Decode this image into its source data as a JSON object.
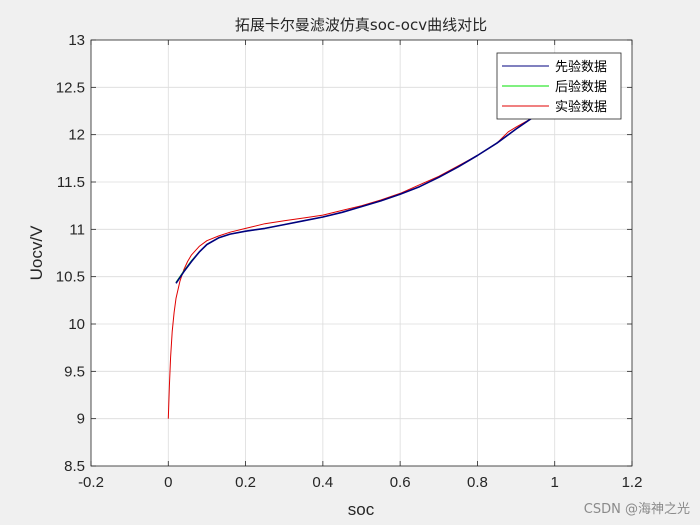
{
  "chart_data": {
    "type": "line",
    "title": "拓展卡尔曼滤波仿真soc-ocv曲线对比",
    "xlabel": "soc",
    "ylabel": "Uocv/V",
    "xlim": [
      -0.2,
      1.2
    ],
    "ylim": [
      8.5,
      13
    ],
    "xticks": [
      -0.2,
      0,
      0.2,
      0.4,
      0.6,
      0.8,
      1,
      1.2
    ],
    "yticks": [
      8.5,
      9,
      9.5,
      10,
      10.5,
      11,
      11.5,
      12,
      12.5,
      13
    ],
    "xtick_labels": [
      "-0.2",
      "0",
      "0.2",
      "0.4",
      "0.6",
      "0.8",
      "1",
      "1.2"
    ],
    "ytick_labels": [
      "8.5",
      "9",
      "9.5",
      "10",
      "10.5",
      "11",
      "11.5",
      "12",
      "12.5",
      "13"
    ],
    "grid": true,
    "legend_position": "top-right",
    "series": [
      {
        "name": "先验数据",
        "color": "#00007f",
        "x": [
          0.02,
          0.04,
          0.06,
          0.08,
          0.1,
          0.13,
          0.16,
          0.2,
          0.25,
          0.3,
          0.35,
          0.4,
          0.45,
          0.5,
          0.55,
          0.6,
          0.65,
          0.7,
          0.75,
          0.8,
          0.85,
          0.9,
          0.95
        ],
        "y": [
          10.43,
          10.55,
          10.66,
          10.76,
          10.84,
          10.91,
          10.95,
          10.98,
          11.01,
          11.05,
          11.09,
          11.13,
          11.18,
          11.24,
          11.3,
          11.37,
          11.45,
          11.55,
          11.66,
          11.78,
          11.91,
          12.06,
          12.2
        ]
      },
      {
        "name": "后验数据",
        "color": "#00e000",
        "x": [
          0.02,
          0.04,
          0.06,
          0.08,
          0.1,
          0.13,
          0.16,
          0.2,
          0.25,
          0.3,
          0.35,
          0.4,
          0.45,
          0.5,
          0.55,
          0.6,
          0.65,
          0.7,
          0.75,
          0.8,
          0.85,
          0.9,
          0.95
        ],
        "y": [
          10.44,
          10.56,
          10.67,
          10.76,
          10.84,
          10.91,
          10.95,
          10.98,
          11.01,
          11.05,
          11.09,
          11.13,
          11.18,
          11.24,
          11.3,
          11.37,
          11.45,
          11.55,
          11.66,
          11.78,
          11.91,
          12.06,
          12.2
        ]
      },
      {
        "name": "实验数据",
        "color": "#e00000",
        "x": [
          0.0,
          0.003,
          0.006,
          0.01,
          0.015,
          0.02,
          0.03,
          0.04,
          0.05,
          0.06,
          0.08,
          0.1,
          0.13,
          0.16,
          0.2,
          0.25,
          0.3,
          0.35,
          0.4,
          0.45,
          0.5,
          0.55,
          0.6,
          0.65,
          0.7,
          0.75,
          0.8,
          0.85,
          0.88,
          0.9,
          0.93,
          0.95
        ],
        "y": [
          9.0,
          9.35,
          9.65,
          9.92,
          10.12,
          10.27,
          10.45,
          10.57,
          10.66,
          10.73,
          10.82,
          10.88,
          10.93,
          10.97,
          11.01,
          11.06,
          11.09,
          11.12,
          11.15,
          11.2,
          11.25,
          11.31,
          11.38,
          11.47,
          11.56,
          11.67,
          11.78,
          11.91,
          12.03,
          12.08,
          12.15,
          12.2
        ]
      }
    ]
  },
  "watermark": "CSDN @海神之光"
}
